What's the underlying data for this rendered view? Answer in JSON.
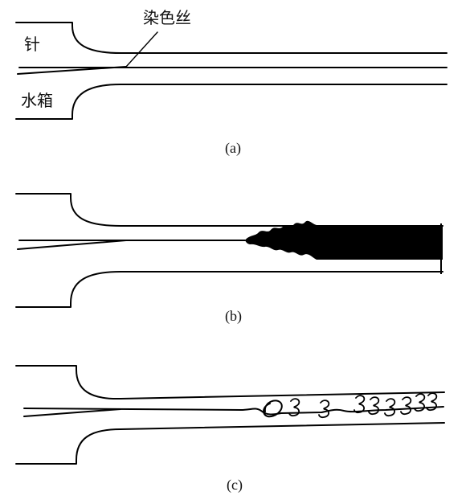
{
  "labels": {
    "needle": "针",
    "dye_thread": "染色丝",
    "water_tank": "水箱"
  },
  "captions": {
    "a": "(a)",
    "b": "(b)",
    "c": "(c)"
  },
  "colors": {
    "line": "#000000",
    "background": "#ffffff"
  }
}
